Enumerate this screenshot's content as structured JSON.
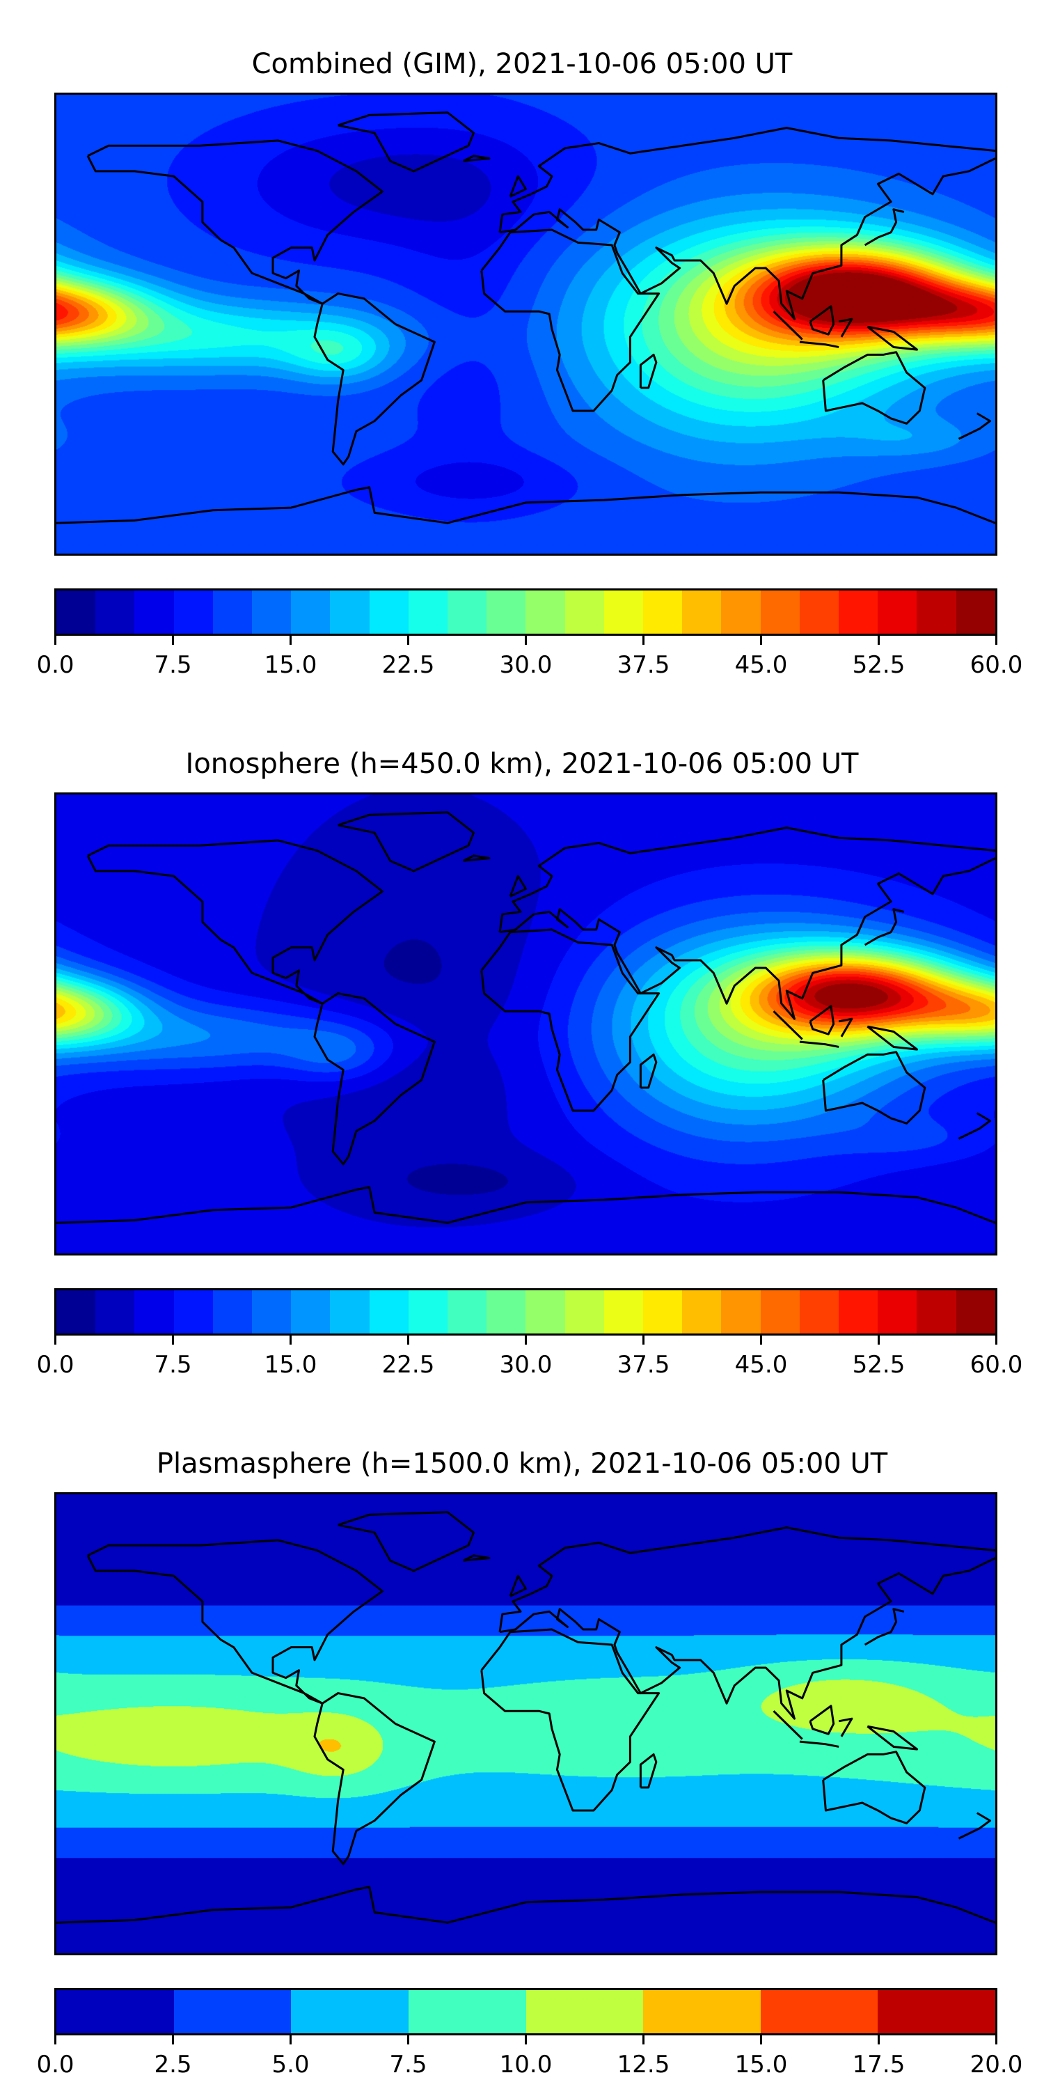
{
  "chart_data": [
    {
      "type": "heatmap",
      "title": "Combined (GIM), 2021-10-06 05:00 UT",
      "colorbar": {
        "min": 0.0,
        "max": 60.0,
        "step": 2.5,
        "ticks": [
          "0.0",
          "7.5",
          "15.0",
          "22.5",
          "30.0",
          "37.5",
          "45.0",
          "52.5",
          "60.0"
        ]
      },
      "colormap": "jet"
    },
    {
      "type": "heatmap",
      "title": "Ionosphere  (h=450.0 km), 2021-10-06 05:00 UT",
      "colorbar": {
        "min": 0.0,
        "max": 60.0,
        "step": 2.5,
        "ticks": [
          "0.0",
          "7.5",
          "15.0",
          "22.5",
          "30.0",
          "37.5",
          "45.0",
          "52.5",
          "60.0"
        ]
      },
      "colormap": "jet"
    },
    {
      "type": "heatmap",
      "title": "Plasmasphere (h=1500.0 km), 2021-10-06 05:00 UT",
      "colorbar": {
        "min": 0.0,
        "max": 20.0,
        "step": 2.5,
        "ticks": [
          "0.0",
          "2.5",
          "5.0",
          "7.5",
          "10.0",
          "12.5",
          "15.0",
          "17.5",
          "20.0"
        ]
      },
      "colormap": "jet"
    }
  ]
}
